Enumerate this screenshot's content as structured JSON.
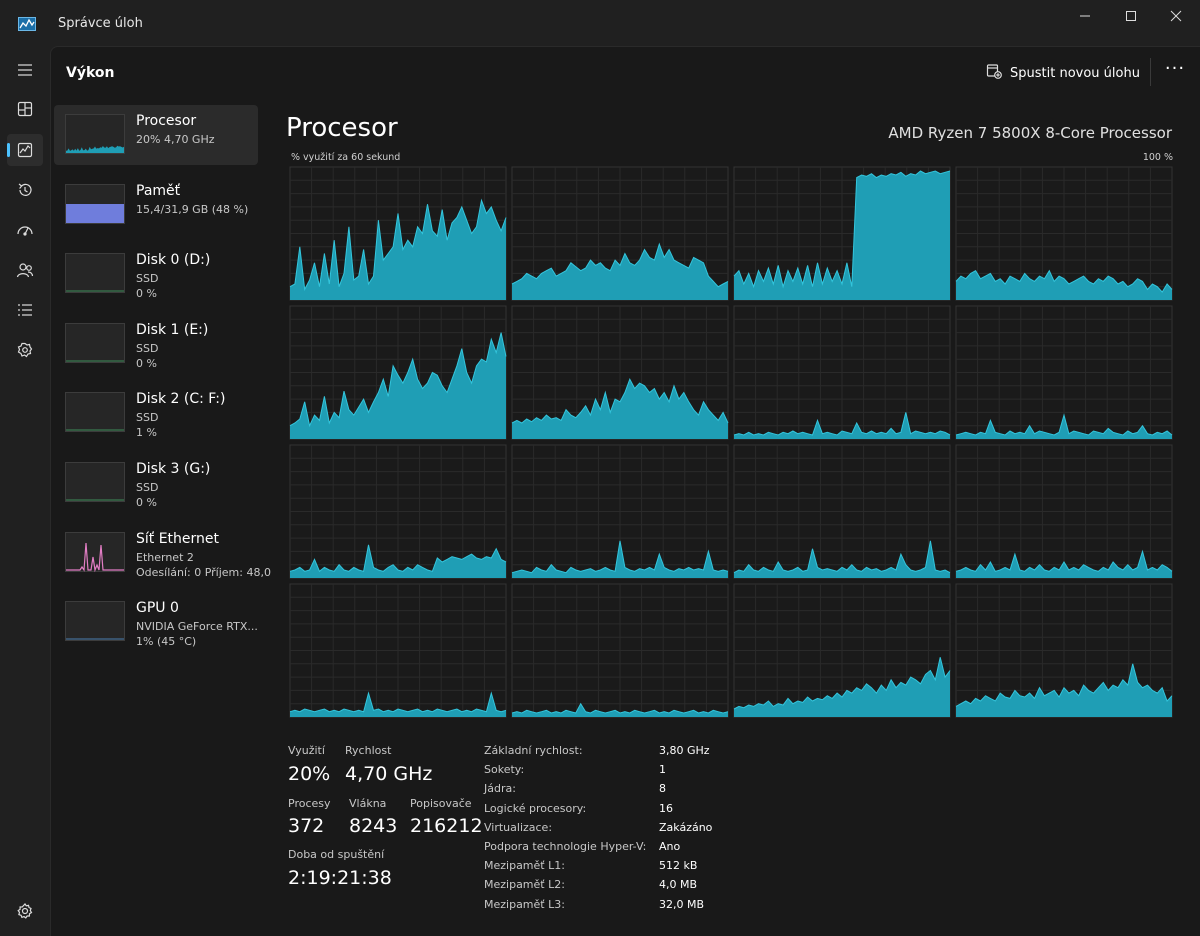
{
  "app": {
    "title": "Správce úloh",
    "page": "Výkon",
    "run_task": "Spustit novou úlohu"
  },
  "nav": [
    {
      "icon": "hamburger-icon"
    },
    {
      "icon": "processes-icon"
    },
    {
      "icon": "performance-icon"
    },
    {
      "icon": "app-history-icon"
    },
    {
      "icon": "startup-apps-icon"
    },
    {
      "icon": "users-icon"
    },
    {
      "icon": "details-icon"
    },
    {
      "icon": "services-icon"
    },
    {
      "icon": "settings-icon"
    }
  ],
  "resources": [
    {
      "name": "Procesor",
      "line1": "20% 4,70 GHz",
      "line2": "",
      "kind": "cpu",
      "level": 0.2
    },
    {
      "name": "Paměť",
      "line1": "15,4/31,9 GB (48 %)",
      "line2": "",
      "kind": "mem",
      "level": 0.48
    },
    {
      "name": "Disk 0 (D:)",
      "line1": "SSD",
      "line2": "0 %",
      "kind": "disk",
      "level": 0
    },
    {
      "name": "Disk 1 (E:)",
      "line1": "SSD",
      "line2": "0 %",
      "kind": "disk",
      "level": 0
    },
    {
      "name": "Disk 2 (C: F:)",
      "line1": "SSD",
      "line2": "1 %",
      "kind": "disk",
      "level": 0.01
    },
    {
      "name": "Disk 3 (G:)",
      "line1": "SSD",
      "line2": "0 %",
      "kind": "disk",
      "level": 0
    },
    {
      "name": "Síť Ethernet",
      "line1": "Ethernet 2",
      "line2": "Odesílání: 0 Příjem: 48,0",
      "kind": "net",
      "level": 0
    },
    {
      "name": "GPU 0",
      "line1": "NVIDIA GeForce RTX...",
      "line2": "1% (45 °C)",
      "kind": "gpu",
      "level": 0.01
    }
  ],
  "cpu": {
    "title": "Procesor",
    "model": "AMD Ryzen 7 5800X 8-Core Processor",
    "graph_caption": "% využití za 60 sekund",
    "graph_max": "100 %",
    "stats": {
      "utilization_label": "Využití",
      "utilization": "20%",
      "speed_label": "Rychlost",
      "speed": "4,70 GHz",
      "processes_label": "Procesy",
      "processes": "372",
      "threads_label": "Vlákna",
      "threads": "8243",
      "handles_label": "Popisovače",
      "handles": "216212",
      "uptime_label": "Doba od spuštění",
      "uptime": "2:19:21:38"
    },
    "specs": [
      {
        "k": "Základní rychlost:",
        "v": "3,80 GHz"
      },
      {
        "k": "Sokety:",
        "v": "1"
      },
      {
        "k": "Jádra:",
        "v": "8"
      },
      {
        "k": "Logické procesory:",
        "v": "16"
      },
      {
        "k": "Virtualizace:",
        "v": "Zakázáno"
      },
      {
        "k": "Podpora technologie Hyper-V:",
        "v": "Ano"
      },
      {
        "k": "Mezipaměť L1:",
        "v": "512 kB"
      },
      {
        "k": "Mezipaměť L2:",
        "v": "4,0 MB"
      },
      {
        "k": "Mezipaměť L3:",
        "v": "32,0 MB"
      }
    ]
  },
  "colors": {
    "cpu_fill": "#1f9eb5",
    "cpu_line": "#33c5dc",
    "mem_fill": "#6f7ddc",
    "net_line": "#e37ec5",
    "accent": "#4cc2ff"
  },
  "chart_data": {
    "type": "area",
    "ylim": [
      0,
      100
    ],
    "series": [
      {
        "values": [
          10,
          12,
          40,
          8,
          15,
          28,
          10,
          35,
          12,
          45,
          10,
          20,
          55,
          15,
          18,
          38,
          12,
          18,
          60,
          30,
          35,
          40,
          65,
          38,
          45,
          40,
          55,
          50,
          72,
          52,
          48,
          68,
          45,
          58,
          62,
          70,
          60,
          50,
          55,
          75,
          65,
          70,
          60,
          52,
          62
        ]
      },
      {
        "values": [
          12,
          14,
          16,
          20,
          18,
          16,
          20,
          22,
          24,
          18,
          20,
          22,
          28,
          25,
          22,
          24,
          30,
          26,
          28,
          24,
          22,
          30,
          26,
          35,
          28,
          26,
          30,
          38,
          32,
          30,
          42,
          32,
          38,
          30,
          28,
          26,
          24,
          32,
          30,
          28,
          18,
          14,
          10,
          12,
          14
        ]
      },
      {
        "values": [
          18,
          22,
          12,
          20,
          10,
          22,
          14,
          24,
          12,
          26,
          10,
          22,
          14,
          24,
          12,
          26,
          10,
          28,
          12,
          24,
          14,
          22,
          12,
          28,
          10,
          92,
          94,
          93,
          95,
          92,
          94,
          93,
          95,
          94,
          96,
          93,
          95,
          94,
          97,
          95,
          96,
          97,
          95,
          96,
          97
        ]
      },
      {
        "values": [
          14,
          18,
          16,
          20,
          22,
          16,
          18,
          20,
          14,
          16,
          12,
          18,
          16,
          14,
          20,
          16,
          14,
          18,
          16,
          22,
          14,
          18,
          16,
          12,
          14,
          16,
          18,
          14,
          12,
          16,
          14,
          18,
          16,
          12,
          14,
          10,
          12,
          16,
          14,
          8,
          12,
          10,
          6,
          12,
          8
        ]
      },
      {
        "values": [
          10,
          12,
          15,
          28,
          10,
          18,
          14,
          32,
          12,
          20,
          16,
          36,
          22,
          18,
          24,
          30,
          20,
          28,
          35,
          45,
          32,
          55,
          48,
          42,
          50,
          60,
          45,
          38,
          42,
          50,
          48,
          40,
          35,
          45,
          55,
          68,
          50,
          42,
          55,
          60,
          58,
          75,
          65,
          80,
          62
        ]
      },
      {
        "values": [
          12,
          14,
          12,
          15,
          13,
          16,
          14,
          18,
          15,
          16,
          14,
          22,
          18,
          16,
          20,
          25,
          18,
          30,
          22,
          35,
          20,
          30,
          28,
          35,
          45,
          38,
          42,
          40,
          35,
          38,
          30,
          35,
          28,
          40,
          30,
          35,
          28,
          22,
          18,
          28,
          22,
          18,
          14,
          20,
          12
        ]
      },
      {
        "values": [
          3,
          4,
          3,
          5,
          3,
          4,
          3,
          5,
          4,
          3,
          5,
          4,
          6,
          4,
          5,
          4,
          3,
          14,
          4,
          5,
          4,
          3,
          6,
          5,
          4,
          12,
          5,
          4,
          6,
          4,
          5,
          4,
          8,
          4,
          5,
          20,
          4,
          6,
          5,
          4,
          5,
          4,
          6,
          5,
          3
        ]
      },
      {
        "values": [
          3,
          4,
          5,
          4,
          3,
          5,
          4,
          14,
          5,
          4,
          3,
          6,
          4,
          5,
          4,
          10,
          4,
          6,
          5,
          4,
          3,
          5,
          18,
          4,
          6,
          5,
          4,
          3,
          6,
          5,
          4,
          8,
          5,
          4,
          3,
          6,
          4,
          5,
          10,
          4,
          3,
          5,
          4,
          6,
          3
        ]
      },
      {
        "values": [
          5,
          6,
          8,
          5,
          6,
          14,
          5,
          8,
          6,
          5,
          10,
          6,
          5,
          8,
          6,
          5,
          25,
          8,
          6,
          5,
          8,
          10,
          6,
          5,
          8,
          6,
          10,
          8,
          6,
          5,
          15,
          12,
          14,
          16,
          15,
          14,
          16,
          18,
          15,
          14,
          16,
          15,
          22,
          14,
          12
        ]
      },
      {
        "values": [
          4,
          5,
          6,
          5,
          4,
          8,
          6,
          5,
          10,
          6,
          5,
          4,
          8,
          6,
          5,
          6,
          7,
          5,
          6,
          8,
          6,
          5,
          28,
          8,
          6,
          5,
          7,
          6,
          8,
          6,
          18,
          8,
          6,
          5,
          7,
          6,
          8,
          6,
          7,
          6,
          20,
          6,
          5,
          6,
          5
        ]
      },
      {
        "values": [
          4,
          6,
          5,
          10,
          6,
          5,
          8,
          6,
          5,
          12,
          6,
          5,
          6,
          8,
          5,
          6,
          22,
          8,
          6,
          7,
          6,
          5,
          8,
          6,
          10,
          6,
          5,
          8,
          6,
          7,
          5,
          6,
          8,
          6,
          18,
          10,
          6,
          5,
          6,
          8,
          28,
          6,
          5,
          6,
          4
        ]
      },
      {
        "values": [
          5,
          6,
          8,
          6,
          5,
          10,
          6,
          12,
          5,
          6,
          8,
          6,
          18,
          6,
          5,
          8,
          6,
          10,
          6,
          5,
          8,
          6,
          12,
          6,
          8,
          6,
          10,
          8,
          6,
          5,
          8,
          6,
          12,
          8,
          6,
          10,
          6,
          8,
          20,
          6,
          8,
          6,
          10,
          8,
          5
        ]
      },
      {
        "values": [
          4,
          5,
          4,
          6,
          5,
          4,
          5,
          6,
          4,
          5,
          4,
          6,
          5,
          4,
          5,
          4,
          18,
          5,
          6,
          4,
          5,
          4,
          6,
          5,
          4,
          5,
          6,
          4,
          5,
          4,
          6,
          5,
          4,
          5,
          6,
          4,
          5,
          4,
          6,
          5,
          4,
          18,
          5,
          4,
          5
        ]
      },
      {
        "values": [
          3,
          4,
          3,
          5,
          4,
          3,
          4,
          5,
          3,
          4,
          3,
          5,
          4,
          3,
          10,
          4,
          3,
          5,
          4,
          3,
          4,
          5,
          3,
          4,
          3,
          5,
          4,
          3,
          4,
          5,
          3,
          4,
          3,
          5,
          4,
          3,
          4,
          5,
          3,
          4,
          3,
          5,
          4,
          3,
          4
        ]
      },
      {
        "values": [
          6,
          8,
          7,
          9,
          8,
          10,
          9,
          12,
          8,
          10,
          9,
          14,
          10,
          12,
          11,
          15,
          12,
          14,
          13,
          16,
          14,
          18,
          15,
          20,
          18,
          22,
          20,
          25,
          22,
          18,
          24,
          20,
          28,
          22,
          26,
          24,
          30,
          28,
          25,
          32,
          35,
          28,
          45,
          30,
          35
        ]
      },
      {
        "values": [
          8,
          10,
          12,
          10,
          14,
          12,
          16,
          14,
          12,
          18,
          15,
          14,
          20,
          16,
          15,
          18,
          14,
          22,
          16,
          18,
          20,
          15,
          22,
          18,
          20,
          16,
          24,
          20,
          18,
          22,
          26,
          20,
          24,
          22,
          28,
          24,
          40,
          26,
          22,
          24,
          20,
          18,
          22,
          12,
          16
        ]
      }
    ]
  }
}
